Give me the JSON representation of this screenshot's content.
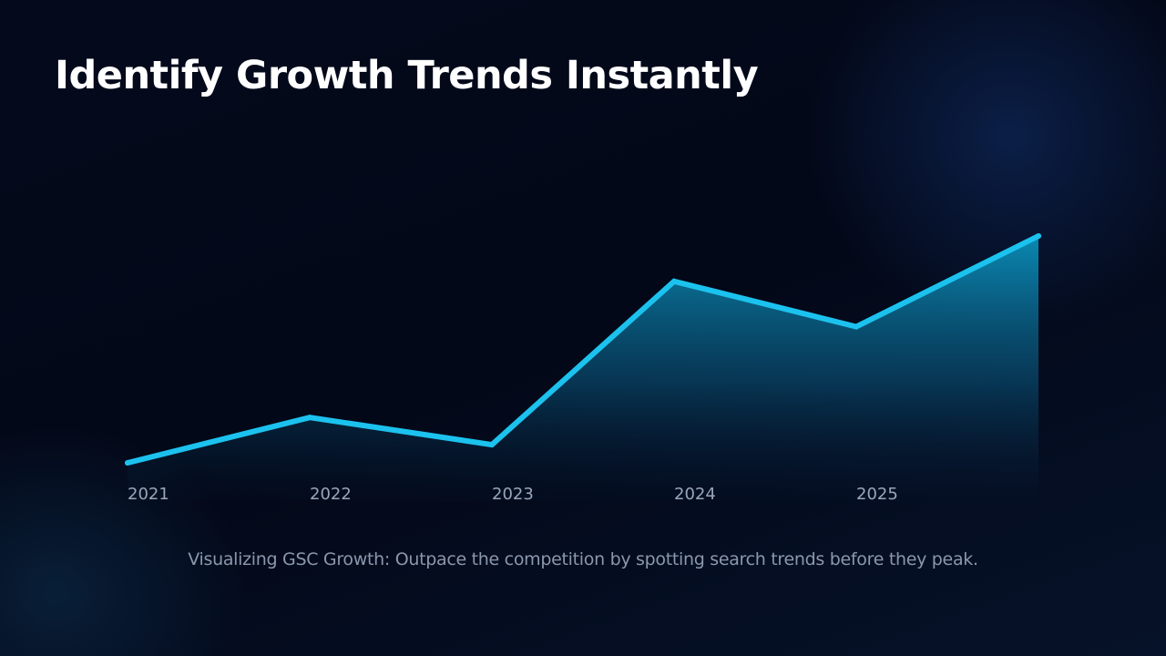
{
  "slide": {
    "title": "Identify Growth Trends Instantly",
    "caption": "Visualizing GSC Growth: Outpace the competition by spotting search trends before they peak."
  },
  "colors": {
    "line": "#1cc2ee",
    "fill_top": "#0b8fb8",
    "background": "#030818"
  },
  "chart_data": {
    "type": "area",
    "title": "",
    "xlabel": "",
    "ylabel": "",
    "categories": [
      "2021",
      "2022",
      "2023",
      "2024",
      "2025"
    ],
    "x": [
      0,
      1,
      2,
      3,
      4,
      5
    ],
    "values": [
      0,
      20,
      8,
      80,
      60,
      100
    ],
    "xlim": [
      0,
      5
    ],
    "ylim": [
      0,
      100
    ],
    "grid": false,
    "legend": false
  }
}
